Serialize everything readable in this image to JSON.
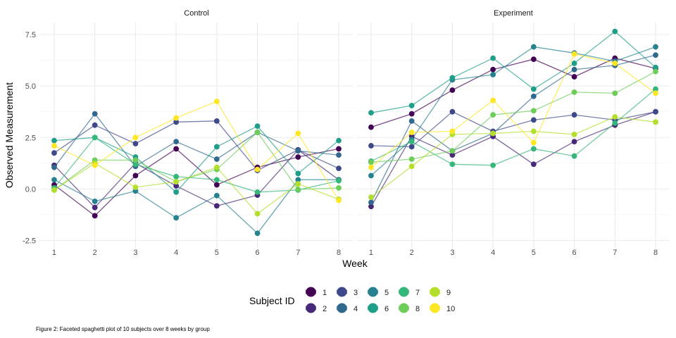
{
  "chart_data": {
    "type": "line",
    "xlabel": "Week",
    "ylabel": "Observed Measurement",
    "x": [
      1,
      2,
      3,
      4,
      5,
      6,
      7,
      8
    ],
    "xticks": [
      "1",
      "2",
      "3",
      "4",
      "5",
      "6",
      "7",
      "8"
    ],
    "ylim": [
      -2.5,
      8.1
    ],
    "yticks": [
      -2.5,
      0.0,
      2.5,
      5.0,
      7.5
    ],
    "ytick_labels": [
      "-2.5",
      "0.0",
      "2.5",
      "5.0",
      "7.5"
    ],
    "grid": true,
    "legend_title": "Subject ID",
    "legend_position": "bottom",
    "caption": "Figure 2: Faceted spaghetti plot of 10 subjects over 8 weeks by group",
    "panels": [
      {
        "title": "Control",
        "series": [
          {
            "name": "1",
            "color": "#440154",
            "values": [
              0.2,
              -1.3,
              0.65,
              1.95,
              0.2,
              1.05,
              1.55,
              1.95
            ]
          },
          {
            "name": "2",
            "color": "#482878",
            "values": [
              1.15,
              -0.9,
              1.25,
              0.15,
              -0.82,
              -0.3,
              1.9,
              0.45
            ]
          },
          {
            "name": "3",
            "color": "#3E4989",
            "values": [
              1.75,
              3.1,
              2.2,
              3.25,
              3.3,
              0.9,
              1.9,
              1.0
            ]
          },
          {
            "name": "4",
            "color": "#31688E",
            "values": [
              1.05,
              3.65,
              1.1,
              2.3,
              1.45,
              2.75,
              1.85,
              1.65
            ]
          },
          {
            "name": "5",
            "color": "#26828E",
            "values": [
              0.45,
              -0.6,
              -0.1,
              -1.4,
              -0.32,
              -2.15,
              0.45,
              0.45
            ]
          },
          {
            "name": "6",
            "color": "#1F9E89",
            "values": [
              2.35,
              2.5,
              1.55,
              -0.15,
              2.05,
              3.05,
              0.75,
              2.35
            ]
          },
          {
            "name": "7",
            "color": "#35B779",
            "values": [
              0.05,
              2.5,
              1.2,
              0.6,
              0.45,
              -0.15,
              -0.05,
              0.4
            ]
          },
          {
            "name": "8",
            "color": "#6DCD59",
            "values": [
              -0.05,
              1.4,
              1.4,
              0.35,
              0.95,
              2.75,
              -0.02,
              0.05
            ]
          },
          {
            "name": "9",
            "color": "#B4DE2C",
            "values": [
              -0.05,
              1.25,
              0.08,
              0.35,
              1.05,
              -1.2,
              0.25,
              -0.5
            ]
          },
          {
            "name": "10",
            "color": "#FDE725",
            "values": [
              2.1,
              1.15,
              2.5,
              3.45,
              4.25,
              0.95,
              2.7,
              -0.55
            ]
          }
        ]
      },
      {
        "title": "Experiment",
        "series": [
          {
            "name": "1",
            "color": "#440154",
            "values": [
              3.0,
              3.65,
              4.8,
              5.8,
              6.3,
              5.45,
              6.35,
              5.85
            ]
          },
          {
            "name": "2",
            "color": "#482878",
            "values": [
              -0.85,
              2.55,
              1.65,
              2.55,
              1.2,
              2.3,
              3.1,
              3.75
            ]
          },
          {
            "name": "3",
            "color": "#3E4989",
            "values": [
              2.1,
              2.05,
              3.75,
              2.8,
              3.35,
              3.6,
              3.35,
              3.75
            ]
          },
          {
            "name": "4",
            "color": "#31688E",
            "values": [
              -0.65,
              3.3,
              1.85,
              2.7,
              4.5,
              5.8,
              6.0,
              6.5
            ]
          },
          {
            "name": "5",
            "color": "#26828E",
            "values": [
              0.65,
              2.4,
              5.3,
              5.55,
              6.9,
              6.6,
              6.2,
              6.9
            ]
          },
          {
            "name": "6",
            "color": "#1F9E89",
            "values": [
              3.7,
              4.05,
              5.4,
              6.35,
              4.85,
              6.1,
              7.65,
              5.9
            ]
          },
          {
            "name": "7",
            "color": "#35B779",
            "values": [
              1.35,
              2.3,
              1.2,
              1.15,
              1.95,
              1.6,
              3.2,
              4.85
            ]
          },
          {
            "name": "8",
            "color": "#6DCD59",
            "values": [
              1.3,
              1.45,
              1.85,
              3.6,
              3.8,
              4.7,
              4.65,
              5.7
            ]
          },
          {
            "name": "9",
            "color": "#B4DE2C",
            "values": [
              -0.4,
              1.1,
              2.65,
              2.7,
              2.8,
              2.65,
              3.5,
              3.25
            ]
          },
          {
            "name": "10",
            "color": "#FDE725",
            "values": [
              1.05,
              2.75,
              2.8,
              4.3,
              2.25,
              6.55,
              6.1,
              4.65
            ]
          }
        ]
      }
    ]
  }
}
